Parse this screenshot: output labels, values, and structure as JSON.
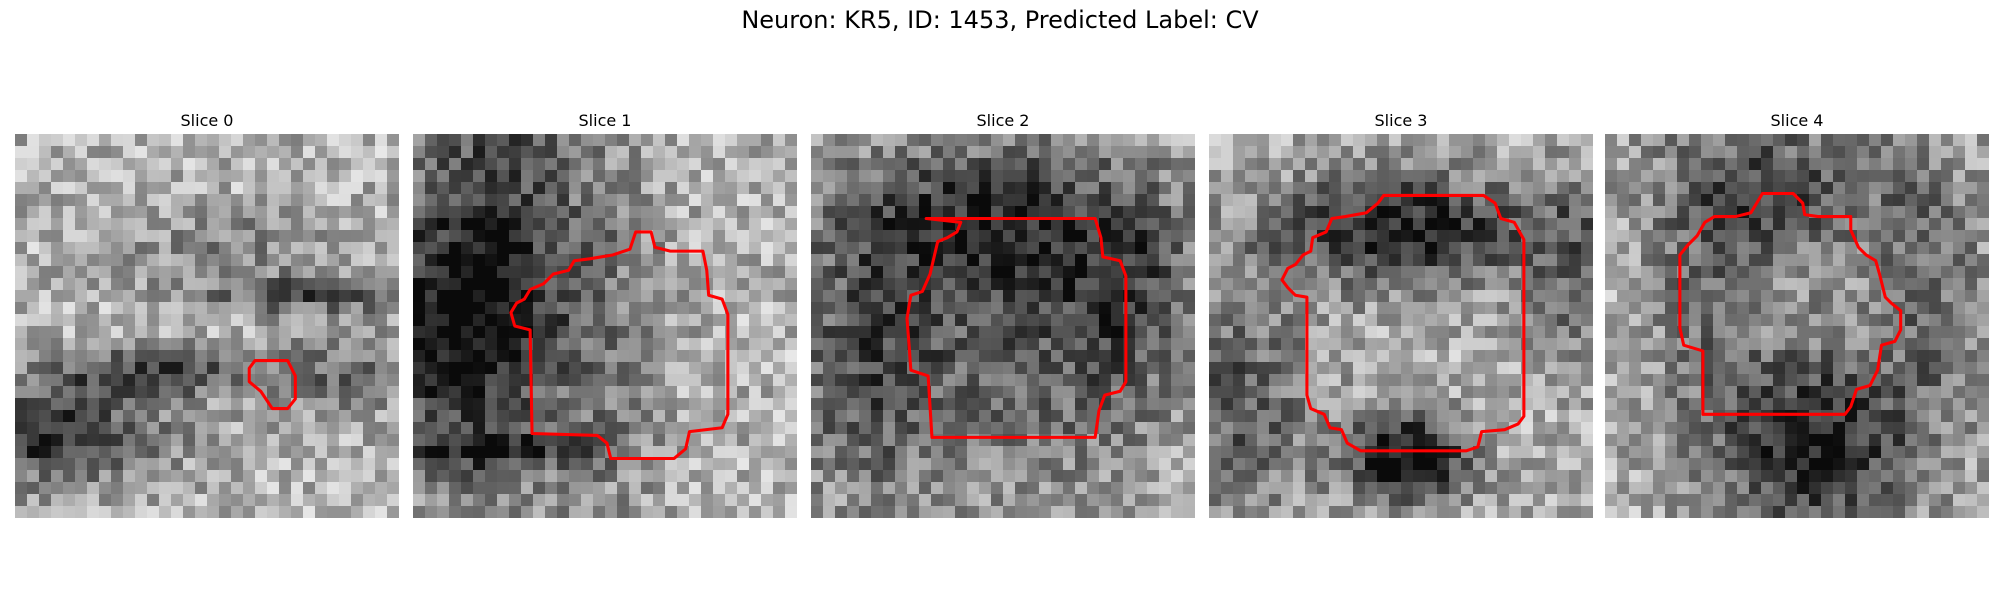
{
  "figure": {
    "title": "Neuron: KR5, ID: 1453, Predicted Label: CV"
  },
  "panels": [
    {
      "title": "Slice 0",
      "seed": 11,
      "dark": [
        [
          0.05,
          0.78,
          0.32,
          0.12,
          0.55
        ],
        [
          0.35,
          0.62,
          0.28,
          0.06,
          0.45
        ],
        [
          0.78,
          0.42,
          0.28,
          0.05,
          0.38
        ],
        [
          0.85,
          0.64,
          0.2,
          0.1,
          0.3
        ],
        [
          0.55,
          0.3,
          0.25,
          0.1,
          0.2
        ]
      ],
      "contour": [
        [
          12.5,
          11.8
        ],
        [
          14.2,
          11.8
        ],
        [
          14.6,
          12.6
        ],
        [
          14.6,
          13.8
        ],
        [
          14.2,
          14.3
        ],
        [
          13.4,
          14.3
        ],
        [
          12.8,
          13.4
        ],
        [
          12.2,
          12.9
        ],
        [
          12.2,
          12.2
        ]
      ]
    },
    {
      "title": "Slice 1",
      "seed": 23,
      "dark": [
        [
          0.08,
          0.5,
          0.25,
          0.28,
          0.45
        ],
        [
          0.2,
          0.25,
          0.22,
          0.7,
          0.4
        ],
        [
          0.22,
          0.82,
          0.28,
          0.05,
          0.35
        ],
        [
          0.5,
          0.5,
          0.16,
          0.6,
          0.18
        ]
      ],
      "contour": [
        [
          11.6,
          5.1
        ],
        [
          12.4,
          5.1
        ],
        [
          12.6,
          5.9
        ],
        [
          13.4,
          6.1
        ],
        [
          15.1,
          6.1
        ],
        [
          15.3,
          7.1
        ],
        [
          15.4,
          8.4
        ],
        [
          16.1,
          8.6
        ],
        [
          16.4,
          9.4
        ],
        [
          16.4,
          14.6
        ],
        [
          16.1,
          15.3
        ],
        [
          14.4,
          15.5
        ],
        [
          14.2,
          16.4
        ],
        [
          13.6,
          16.9
        ],
        [
          10.3,
          16.9
        ],
        [
          10.1,
          16.1
        ],
        [
          9.6,
          15.7
        ],
        [
          6.2,
          15.6
        ],
        [
          6.1,
          10.2
        ],
        [
          5.3,
          10.0
        ],
        [
          5.1,
          9.3
        ],
        [
          5.4,
          8.8
        ],
        [
          5.8,
          8.6
        ],
        [
          6.1,
          8.1
        ],
        [
          6.8,
          7.8
        ],
        [
          7.3,
          7.3
        ],
        [
          8.1,
          7.1
        ],
        [
          8.4,
          6.6
        ],
        [
          9.2,
          6.5
        ],
        [
          10.4,
          6.3
        ],
        [
          11.3,
          6.0
        ]
      ]
    },
    {
      "title": "Slice 2",
      "seed": 37,
      "dark": [
        [
          0.35,
          0.22,
          0.35,
          0.18,
          0.35
        ],
        [
          0.6,
          0.45,
          0.3,
          0.5,
          0.35
        ],
        [
          0.15,
          0.6,
          0.22,
          0.35,
          0.4
        ],
        [
          0.85,
          0.4,
          0.16,
          0.3,
          0.3
        ]
      ],
      "contour": [
        [
          6.0,
          4.4
        ],
        [
          14.8,
          4.4
        ],
        [
          15.1,
          5.4
        ],
        [
          15.2,
          6.4
        ],
        [
          16.1,
          6.6
        ],
        [
          16.4,
          7.4
        ],
        [
          16.4,
          12.9
        ],
        [
          16.1,
          13.4
        ],
        [
          15.3,
          13.6
        ],
        [
          15.0,
          14.4
        ],
        [
          14.8,
          15.8
        ],
        [
          6.3,
          15.8
        ],
        [
          6.1,
          12.6
        ],
        [
          5.2,
          12.3
        ],
        [
          5.1,
          10.9
        ],
        [
          5.0,
          9.6
        ],
        [
          5.2,
          8.4
        ],
        [
          5.8,
          8.2
        ],
        [
          6.2,
          7.3
        ],
        [
          6.6,
          5.6
        ],
        [
          7.1,
          5.4
        ],
        [
          7.6,
          5.1
        ],
        [
          7.8,
          4.6
        ]
      ]
    },
    {
      "title": "Slice 3",
      "seed": 53,
      "dark": [
        [
          0.5,
          0.25,
          0.35,
          0.15,
          0.6
        ],
        [
          0.52,
          0.85,
          0.16,
          0.12,
          0.7
        ],
        [
          0.08,
          0.7,
          0.2,
          0.3,
          0.35
        ],
        [
          0.95,
          0.35,
          0.12,
          0.25,
          0.3
        ]
      ],
      "contour": [
        [
          9.1,
          3.2
        ],
        [
          14.3,
          3.2
        ],
        [
          14.9,
          3.6
        ],
        [
          15.2,
          4.4
        ],
        [
          15.9,
          4.6
        ],
        [
          16.4,
          5.5
        ],
        [
          16.4,
          14.7
        ],
        [
          16.1,
          15.1
        ],
        [
          15.4,
          15.4
        ],
        [
          14.2,
          15.5
        ],
        [
          14.0,
          16.3
        ],
        [
          13.4,
          16.5
        ],
        [
          7.9,
          16.5
        ],
        [
          7.2,
          16.1
        ],
        [
          6.9,
          15.4
        ],
        [
          6.3,
          15.3
        ],
        [
          6.0,
          14.6
        ],
        [
          5.3,
          14.3
        ],
        [
          5.1,
          13.6
        ],
        [
          5.1,
          8.5
        ],
        [
          4.5,
          8.4
        ],
        [
          4.1,
          8.0
        ],
        [
          3.8,
          7.6
        ],
        [
          4.1,
          7.0
        ],
        [
          4.5,
          6.8
        ],
        [
          4.9,
          6.3
        ],
        [
          5.3,
          6.1
        ],
        [
          5.4,
          5.4
        ],
        [
          6.1,
          5.1
        ],
        [
          6.4,
          4.4
        ],
        [
          7.1,
          4.3
        ],
        [
          8.2,
          4.1
        ],
        [
          8.8,
          3.6
        ]
      ]
    },
    {
      "title": "Slice 4",
      "seed": 71,
      "dark": [
        [
          0.45,
          0.15,
          0.3,
          0.2,
          0.4
        ],
        [
          0.55,
          0.8,
          0.25,
          0.25,
          0.6
        ],
        [
          0.25,
          0.45,
          0.15,
          0.4,
          0.2
        ],
        [
          0.85,
          0.4,
          0.15,
          0.4,
          0.25
        ]
      ],
      "contour": [
        [
          8.2,
          3.1
        ],
        [
          9.8,
          3.1
        ],
        [
          10.3,
          3.6
        ],
        [
          10.4,
          4.2
        ],
        [
          11.1,
          4.3
        ],
        [
          12.8,
          4.3
        ],
        [
          12.8,
          5.0
        ],
        [
          13.2,
          5.9
        ],
        [
          13.6,
          6.3
        ],
        [
          14.1,
          6.6
        ],
        [
          14.3,
          7.3
        ],
        [
          14.6,
          8.5
        ],
        [
          14.9,
          8.8
        ],
        [
          15.4,
          9.2
        ],
        [
          15.4,
          10.2
        ],
        [
          15.1,
          10.8
        ],
        [
          14.4,
          11.0
        ],
        [
          14.2,
          12.3
        ],
        [
          13.8,
          13.1
        ],
        [
          13.1,
          13.3
        ],
        [
          12.8,
          14.2
        ],
        [
          12.5,
          14.6
        ],
        [
          5.1,
          14.6
        ],
        [
          5.1,
          11.3
        ],
        [
          4.1,
          11.0
        ],
        [
          3.9,
          10.1
        ],
        [
          3.9,
          6.3
        ],
        [
          4.3,
          5.8
        ],
        [
          4.8,
          5.3
        ],
        [
          5.2,
          4.6
        ],
        [
          5.7,
          4.3
        ],
        [
          6.8,
          4.3
        ],
        [
          7.6,
          4.1
        ],
        [
          7.9,
          3.6
        ]
      ]
    }
  ],
  "colors": {
    "contour": "#ff0000",
    "colormap": "gray"
  }
}
